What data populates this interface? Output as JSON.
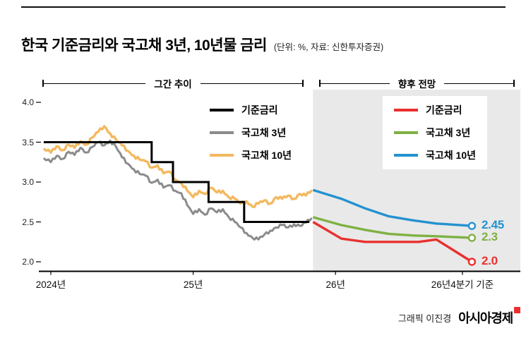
{
  "header": {
    "title": "한국 기준금리와 국고채 3년, 10년물 금리",
    "subtitle": "(단위: %, 자료: 신한투자증권)"
  },
  "sections": {
    "past_label": "그간 추이",
    "future_label": "향후 전망"
  },
  "footer": {
    "credit": "그래픽 이진경",
    "brand": "아시아경제"
  },
  "chart_data": {
    "type": "line",
    "title": "한국 기준금리와 국고채 3년, 10년물 금리",
    "unit": "%",
    "source": "신한투자증권",
    "x_unit": "months since 2024-01",
    "ylim": [
      1.95,
      4.15
    ],
    "yticks": [
      {
        "label": "4.0",
        "value": 4.0
      },
      {
        "label": "3.5",
        "value": 3.5
      },
      {
        "label": "3.0",
        "value": 3.0
      },
      {
        "label": "2.5",
        "value": 2.5
      },
      {
        "label": "2.0",
        "value": 2.0
      }
    ],
    "xticks": [
      {
        "label": "2024년",
        "t": 0
      },
      {
        "label": "25년",
        "t": 12
      },
      {
        "label": "26년",
        "t": 24
      },
      {
        "label": "26년4분기 기준",
        "t": 34.7
      }
    ],
    "historical": {
      "label": "그간 추이",
      "series": [
        {
          "name": "기준금리",
          "color": "#000000",
          "width": 3,
          "step": true,
          "jitter": 0,
          "points": [
            [
              -0.6,
              3.5
            ],
            [
              8.5,
              3.5
            ],
            [
              8.5,
              3.25
            ],
            [
              10.3,
              3.25
            ],
            [
              10.3,
              3.0
            ],
            [
              13.3,
              3.0
            ],
            [
              13.3,
              2.75
            ],
            [
              16.3,
              2.75
            ],
            [
              16.3,
              2.5
            ],
            [
              21.8,
              2.5
            ]
          ]
        },
        {
          "name": "국고채 3년",
          "color": "#8b8b8b",
          "width": 3,
          "jitter": 0.02,
          "points": [
            [
              -0.6,
              3.3
            ],
            [
              0,
              3.25
            ],
            [
              0.5,
              3.33
            ],
            [
              1,
              3.29
            ],
            [
              1.5,
              3.38
            ],
            [
              2,
              3.34
            ],
            [
              2.5,
              3.43
            ],
            [
              3,
              3.37
            ],
            [
              3.5,
              3.44
            ],
            [
              4,
              3.5
            ],
            [
              4.5,
              3.46
            ],
            [
              5,
              3.52
            ],
            [
              5.5,
              3.44
            ],
            [
              6,
              3.31
            ],
            [
              6.5,
              3.23
            ],
            [
              7,
              3.16
            ],
            [
              7.5,
              3.1
            ],
            [
              8,
              3.08
            ],
            [
              8.5,
              2.99
            ],
            [
              9,
              3.03
            ],
            [
              9.5,
              2.93
            ],
            [
              10,
              2.96
            ],
            [
              10.5,
              2.89
            ],
            [
              11,
              2.86
            ],
            [
              11.5,
              2.71
            ],
            [
              12,
              2.6
            ],
            [
              12.5,
              2.66
            ],
            [
              13,
              2.59
            ],
            [
              13.5,
              2.67
            ],
            [
              14,
              2.62
            ],
            [
              14.5,
              2.66
            ],
            [
              15,
              2.56
            ],
            [
              15.5,
              2.5
            ],
            [
              16,
              2.43
            ],
            [
              16.5,
              2.36
            ],
            [
              17,
              2.3
            ],
            [
              17.5,
              2.28
            ],
            [
              18,
              2.34
            ],
            [
              18.5,
              2.39
            ],
            [
              19,
              2.43
            ],
            [
              19.5,
              2.46
            ],
            [
              20,
              2.43
            ],
            [
              20.5,
              2.47
            ],
            [
              21,
              2.45
            ],
            [
              21.5,
              2.49
            ],
            [
              22,
              2.55
            ]
          ]
        },
        {
          "name": "국고채 10년",
          "color": "#f3b95f",
          "width": 3.4,
          "jitter": 0.02,
          "points": [
            [
              -0.6,
              3.42
            ],
            [
              0,
              3.37
            ],
            [
              0.5,
              3.45
            ],
            [
              1,
              3.4
            ],
            [
              1.5,
              3.47
            ],
            [
              2,
              3.43
            ],
            [
              2.5,
              3.51
            ],
            [
              3,
              3.47
            ],
            [
              3.5,
              3.56
            ],
            [
              4,
              3.63
            ],
            [
              4.5,
              3.7
            ],
            [
              5,
              3.61
            ],
            [
              5.5,
              3.53
            ],
            [
              6,
              3.46
            ],
            [
              6.5,
              3.39
            ],
            [
              7,
              3.33
            ],
            [
              7.5,
              3.28
            ],
            [
              8,
              3.26
            ],
            [
              8.5,
              3.18
            ],
            [
              9,
              3.21
            ],
            [
              9.5,
              3.11
            ],
            [
              10,
              3.13
            ],
            [
              10.5,
              3.03
            ],
            [
              11,
              2.99
            ],
            [
              11.5,
              2.89
            ],
            [
              12,
              2.81
            ],
            [
              12.5,
              2.89
            ],
            [
              13,
              2.85
            ],
            [
              13.5,
              2.93
            ],
            [
              14,
              2.87
            ],
            [
              14.5,
              2.89
            ],
            [
              15,
              2.81
            ],
            [
              15.5,
              2.79
            ],
            [
              16,
              2.73
            ],
            [
              16.5,
              2.76
            ],
            [
              17,
              2.69
            ],
            [
              17.5,
              2.73
            ],
            [
              18,
              2.77
            ],
            [
              18.5,
              2.73
            ],
            [
              19,
              2.81
            ],
            [
              19.5,
              2.79
            ],
            [
              20,
              2.83
            ],
            [
              20.5,
              2.79
            ],
            [
              21,
              2.85
            ],
            [
              21.5,
              2.83
            ],
            [
              22,
              2.9
            ]
          ]
        }
      ]
    },
    "forecast": {
      "label": "향후 전망",
      "t_start": 22.1,
      "bg_color": "#e9e9e9",
      "series": [
        {
          "name": "기준금리",
          "color": "#e8312f",
          "width": 3.4,
          "jitter": 0,
          "end_marker": true,
          "points": [
            [
              22.1,
              2.5
            ],
            [
              24.5,
              2.29
            ],
            [
              26.5,
              2.25
            ],
            [
              31,
              2.25
            ],
            [
              32.5,
              2.28
            ],
            [
              35.5,
              2.0
            ]
          ]
        },
        {
          "name": "국고채 3년",
          "color": "#7fb143",
          "width": 3.4,
          "jitter": 0,
          "end_marker": true,
          "points": [
            [
              22.1,
              2.56
            ],
            [
              24.5,
              2.46
            ],
            [
              26.5,
              2.4
            ],
            [
              28.5,
              2.35
            ],
            [
              30.5,
              2.33
            ],
            [
              32.5,
              2.32
            ],
            [
              35.5,
              2.3
            ]
          ]
        },
        {
          "name": "국고채 10년",
          "color": "#2492d0",
          "width": 3.4,
          "jitter": 0,
          "end_marker": true,
          "points": [
            [
              22.1,
              2.9
            ],
            [
              24.5,
              2.79
            ],
            [
              26.5,
              2.67
            ],
            [
              28.5,
              2.57
            ],
            [
              30.5,
              2.52
            ],
            [
              32.5,
              2.48
            ],
            [
              35.5,
              2.45
            ]
          ]
        }
      ],
      "end_labels": [
        {
          "text": "2.45",
          "value": 2.45,
          "color": "#2492d0"
        },
        {
          "text": "2.3",
          "value": 2.3,
          "color": "#7fb143"
        },
        {
          "text": "2.0",
          "value": 2.0,
          "color": "#e8312f"
        }
      ]
    }
  }
}
